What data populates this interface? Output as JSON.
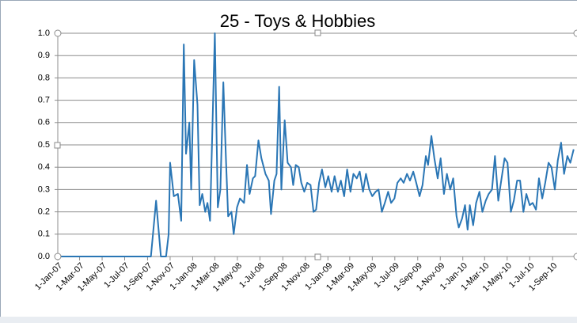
{
  "chart_data": {
    "type": "line",
    "title": "25 - Toys & Hobbies",
    "color": "#2a76b5",
    "grid": true,
    "ylim": [
      0,
      1
    ],
    "yticks": [
      {
        "value": 0,
        "label": "0.0"
      },
      0.1,
      0.2,
      0.3,
      0.4,
      0.5,
      0.6,
      0.7,
      0.8,
      0.9,
      {
        "value": 1,
        "label": "1.0"
      }
    ],
    "xlim": [
      "2007-01-01",
      "2010-11-06"
    ],
    "xticks": [
      {
        "value": "2007-01-01",
        "label": "1-Jan-07"
      },
      {
        "value": "2007-03-01",
        "label": "1-Mar-07"
      },
      {
        "value": "2007-05-01",
        "label": "1-May-07"
      },
      {
        "value": "2007-07-01",
        "label": "1-Jul-07"
      },
      {
        "value": "2007-09-01",
        "label": "1-Sep-07"
      },
      {
        "value": "2007-11-01",
        "label": "1-Nov-07"
      },
      {
        "value": "2008-01-01",
        "label": "1-Jan-08"
      },
      {
        "value": "2008-03-01",
        "label": "1-Mar-08"
      },
      {
        "value": "2008-05-01",
        "label": "1-May-08"
      },
      {
        "value": "2008-07-01",
        "label": "1-Jul-08"
      },
      {
        "value": "2008-09-01",
        "label": "1-Sep-08"
      },
      {
        "value": "2008-11-01",
        "label": "1-Nov-08"
      },
      {
        "value": "2009-01-01",
        "label": "1-Jan-09"
      },
      {
        "value": "2009-03-01",
        "label": "1-Mar-09"
      },
      {
        "value": "2009-05-01",
        "label": "1-May-09"
      },
      {
        "value": "2009-07-01",
        "label": "1-Jul-09"
      },
      {
        "value": "2009-09-01",
        "label": "1-Sep-09"
      },
      {
        "value": "2009-11-01",
        "label": "1-Nov-09"
      },
      {
        "value": "2010-01-01",
        "label": "1-Jan-10"
      },
      {
        "value": "2010-03-01",
        "label": "1-Mar-10"
      },
      {
        "value": "2010-05-01",
        "label": "1-May-10"
      },
      {
        "value": "2010-07-01",
        "label": "1-Jul-10"
      },
      {
        "value": "2010-09-01",
        "label": "1-Sep-10"
      }
    ],
    "x": [
      "2007-01-01",
      "2007-09-10",
      "2007-09-24",
      "2007-10-07",
      "2007-10-21",
      "2007-10-28",
      "2007-11-01",
      "2007-11-11",
      "2007-11-22",
      "2007-12-01",
      "2007-12-08",
      "2007-12-14",
      "2007-12-23",
      "2007-12-28",
      "2008-01-05",
      "2008-01-14",
      "2008-01-20",
      "2008-01-27",
      "2008-02-04",
      "2008-02-10",
      "2008-02-17",
      "2008-03-01",
      "2008-03-09",
      "2008-03-16",
      "2008-03-24",
      "2008-03-31",
      "2008-04-06",
      "2008-04-15",
      "2008-04-21",
      "2008-04-30",
      "2008-05-08",
      "2008-05-19",
      "2008-05-27",
      "2008-06-03",
      "2008-06-12",
      "2008-06-18",
      "2008-06-27",
      "2008-07-05",
      "2008-07-16",
      "2008-07-25",
      "2008-07-31",
      "2008-08-09",
      "2008-08-15",
      "2008-08-22",
      "2008-08-28",
      "2008-09-06",
      "2008-09-14",
      "2008-09-23",
      "2008-09-29",
      "2008-10-06",
      "2008-10-14",
      "2008-10-21",
      "2008-10-29",
      "2008-11-06",
      "2008-11-15",
      "2008-11-23",
      "2008-11-30",
      "2008-12-08",
      "2008-12-16",
      "2008-12-25",
      "2009-01-02",
      "2009-01-11",
      "2009-01-19",
      "2009-01-28",
      "2009-02-05",
      "2009-02-14",
      "2009-02-22",
      "2009-03-03",
      "2009-03-11",
      "2009-03-20",
      "2009-03-28",
      "2009-04-06",
      "2009-04-14",
      "2009-04-23",
      "2009-05-01",
      "2009-05-10",
      "2009-05-18",
      "2009-05-27",
      "2009-06-04",
      "2009-06-13",
      "2009-06-21",
      "2009-06-30",
      "2009-07-08",
      "2009-07-17",
      "2009-07-25",
      "2009-08-03",
      "2009-08-11",
      "2009-08-20",
      "2009-08-28",
      "2009-09-06",
      "2009-09-14",
      "2009-09-23",
      "2009-09-29",
      "2009-10-08",
      "2009-10-16",
      "2009-10-25",
      "2009-11-02",
      "2009-11-11",
      "2009-11-19",
      "2009-11-28",
      "2009-12-06",
      "2009-12-15",
      "2009-12-21",
      "2009-12-30",
      "2010-01-07",
      "2010-01-14",
      "2010-01-20",
      "2010-01-29",
      "2010-02-06",
      "2010-02-15",
      "2010-02-23",
      "2010-03-04",
      "2010-03-12",
      "2010-03-21",
      "2010-03-29",
      "2010-04-07",
      "2010-04-15",
      "2010-04-24",
      "2010-05-02",
      "2010-05-11",
      "2010-05-19",
      "2010-05-28",
      "2010-06-05",
      "2010-06-14",
      "2010-06-22",
      "2010-07-01",
      "2010-07-09",
      "2010-07-18",
      "2010-07-26",
      "2010-08-04",
      "2010-08-12",
      "2010-08-21",
      "2010-08-29",
      "2010-09-07",
      "2010-09-15",
      "2010-09-24",
      "2010-10-02",
      "2010-10-11",
      "2010-10-19",
      "2010-10-28"
    ],
    "values": [
      0,
      0,
      0.25,
      0,
      0,
      0.1,
      0.42,
      0.27,
      0.28,
      0.16,
      0.95,
      0.46,
      0.6,
      0.3,
      0.88,
      0.68,
      0.23,
      0.28,
      0.2,
      0.24,
      0.16,
      1.0,
      0.22,
      0.3,
      0.78,
      0.44,
      0.18,
      0.2,
      0.1,
      0.22,
      0.26,
      0.24,
      0.41,
      0.28,
      0.35,
      0.36,
      0.52,
      0.44,
      0.37,
      0.34,
      0.19,
      0.34,
      0.37,
      0.76,
      0.3,
      0.61,
      0.42,
      0.4,
      0.32,
      0.41,
      0.4,
      0.33,
      0.29,
      0.33,
      0.32,
      0.2,
      0.21,
      0.33,
      0.39,
      0.31,
      0.36,
      0.29,
      0.36,
      0.29,
      0.34,
      0.27,
      0.39,
      0.29,
      0.37,
      0.35,
      0.38,
      0.29,
      0.37,
      0.3,
      0.27,
      0.29,
      0.3,
      0.2,
      0.24,
      0.29,
      0.24,
      0.26,
      0.33,
      0.35,
      0.33,
      0.37,
      0.34,
      0.38,
      0.33,
      0.27,
      0.32,
      0.45,
      0.41,
      0.54,
      0.44,
      0.35,
      0.44,
      0.28,
      0.37,
      0.3,
      0.35,
      0.18,
      0.13,
      0.17,
      0.23,
      0.12,
      0.23,
      0.14,
      0.24,
      0.29,
      0.2,
      0.25,
      0.28,
      0.3,
      0.45,
      0.25,
      0.34,
      0.44,
      0.42,
      0.2,
      0.25,
      0.34,
      0.34,
      0.2,
      0.28,
      0.23,
      0.24,
      0.21,
      0.35,
      0.26,
      0.33,
      0.42,
      0.4,
      0.3,
      0.43,
      0.51,
      0.37,
      0.45,
      0.42,
      0.48
    ]
  }
}
